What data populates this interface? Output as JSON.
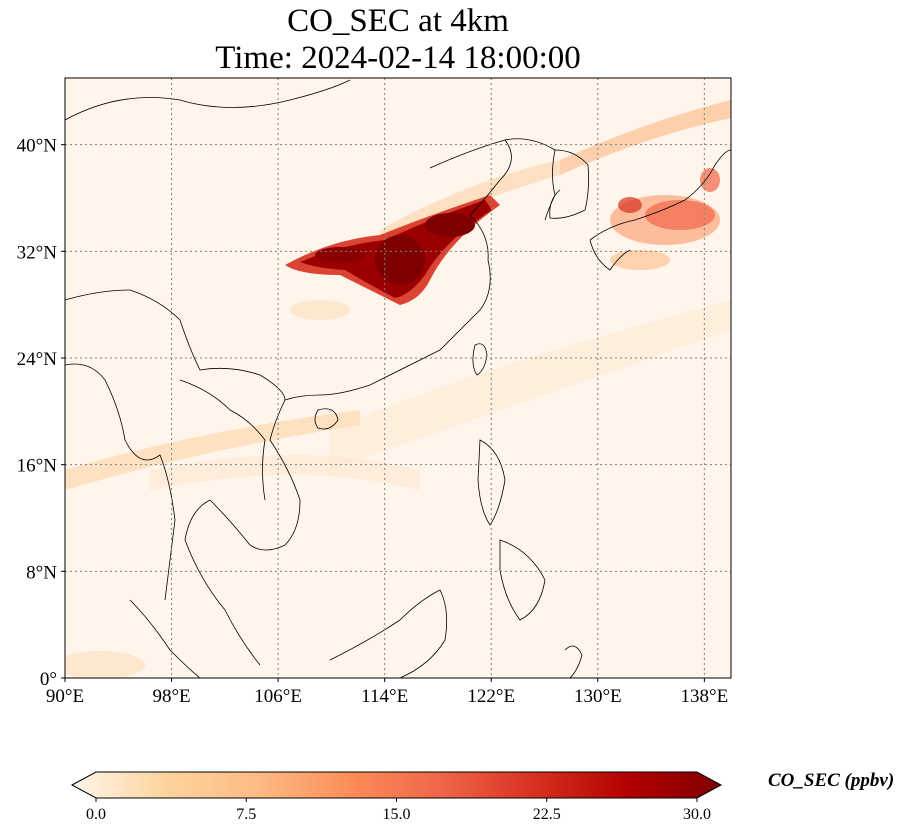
{
  "figure": {
    "title_line1": "CO_SEC at 4km",
    "title_line2": "Time: 2024-02-14 18:00:00",
    "variable": "CO_SEC",
    "level": "4km",
    "time": "2024-02-14 18:00:00"
  },
  "map": {
    "projection": "PlateCarree",
    "lon_range": [
      90,
      140
    ],
    "lat_range": [
      0,
      45
    ],
    "gridlines": "dotted",
    "lon_ticks": [
      {
        "value": 90,
        "label": "90°E"
      },
      {
        "value": 98,
        "label": "98°E"
      },
      {
        "value": 106,
        "label": "106°E"
      },
      {
        "value": 114,
        "label": "114°E"
      },
      {
        "value": 122,
        "label": "122°E"
      },
      {
        "value": 130,
        "label": "130°E"
      },
      {
        "value": 138,
        "label": "138°E"
      }
    ],
    "lat_ticks": [
      {
        "value": 0,
        "label": "0°"
      },
      {
        "value": 8,
        "label": "8°N"
      },
      {
        "value": 16,
        "label": "16°N"
      },
      {
        "value": 24,
        "label": "24°N"
      },
      {
        "value": 32,
        "label": "32°N"
      },
      {
        "value": 40,
        "label": "40°N"
      }
    ],
    "background_color": "#fff5eb",
    "coastline_color": "#000000",
    "grid_color": "#808080"
  },
  "colorbar": {
    "label": "CO_SEC (ppbv)",
    "cmap": "OrRd",
    "min": 0,
    "max": 30,
    "extend": "both",
    "ticks": [
      {
        "value": 0,
        "label": "0.0"
      },
      {
        "value": 7.5,
        "label": "7.5"
      },
      {
        "value": 15,
        "label": "15.0"
      },
      {
        "value": 22.5,
        "label": "22.5"
      },
      {
        "value": 30,
        "label": "30.0"
      }
    ],
    "stops": [
      "#fff5eb",
      "#fdd49e",
      "#fdbb84",
      "#fc8d59",
      "#ef6548",
      "#d7301f",
      "#b30000",
      "#7f0000"
    ]
  },
  "chart_data": {
    "type": "heatmap",
    "field": "CO_SEC",
    "units": "ppbv",
    "time": "2024-02-14 18:00:00",
    "level": "4km",
    "xlim": [
      90,
      140
    ],
    "ylim": [
      0,
      45
    ],
    "plumes": [
      {
        "region": "Central-East China plume",
        "lon_range": [
          107,
          119
        ],
        "lat_range": [
          29,
          36
        ],
        "peak_value": 30
      },
      {
        "region": "Southern Japan",
        "lon_range": [
          132,
          140
        ],
        "lat_range": [
          32,
          37
        ],
        "peak_value": 18
      },
      {
        "region": "Korea / Sea of Japan band",
        "lon_range": [
          127,
          140
        ],
        "lat_range": [
          39,
          43
        ],
        "peak_value": 8
      },
      {
        "region": "Bay of Bengal band",
        "lon_range": [
          90,
          100
        ],
        "lat_range": [
          14,
          17
        ],
        "peak_value": 4
      },
      {
        "region": "Background",
        "lon_range": [
          90,
          140
        ],
        "lat_range": [
          0,
          45
        ],
        "peak_value": 1
      }
    ]
  }
}
